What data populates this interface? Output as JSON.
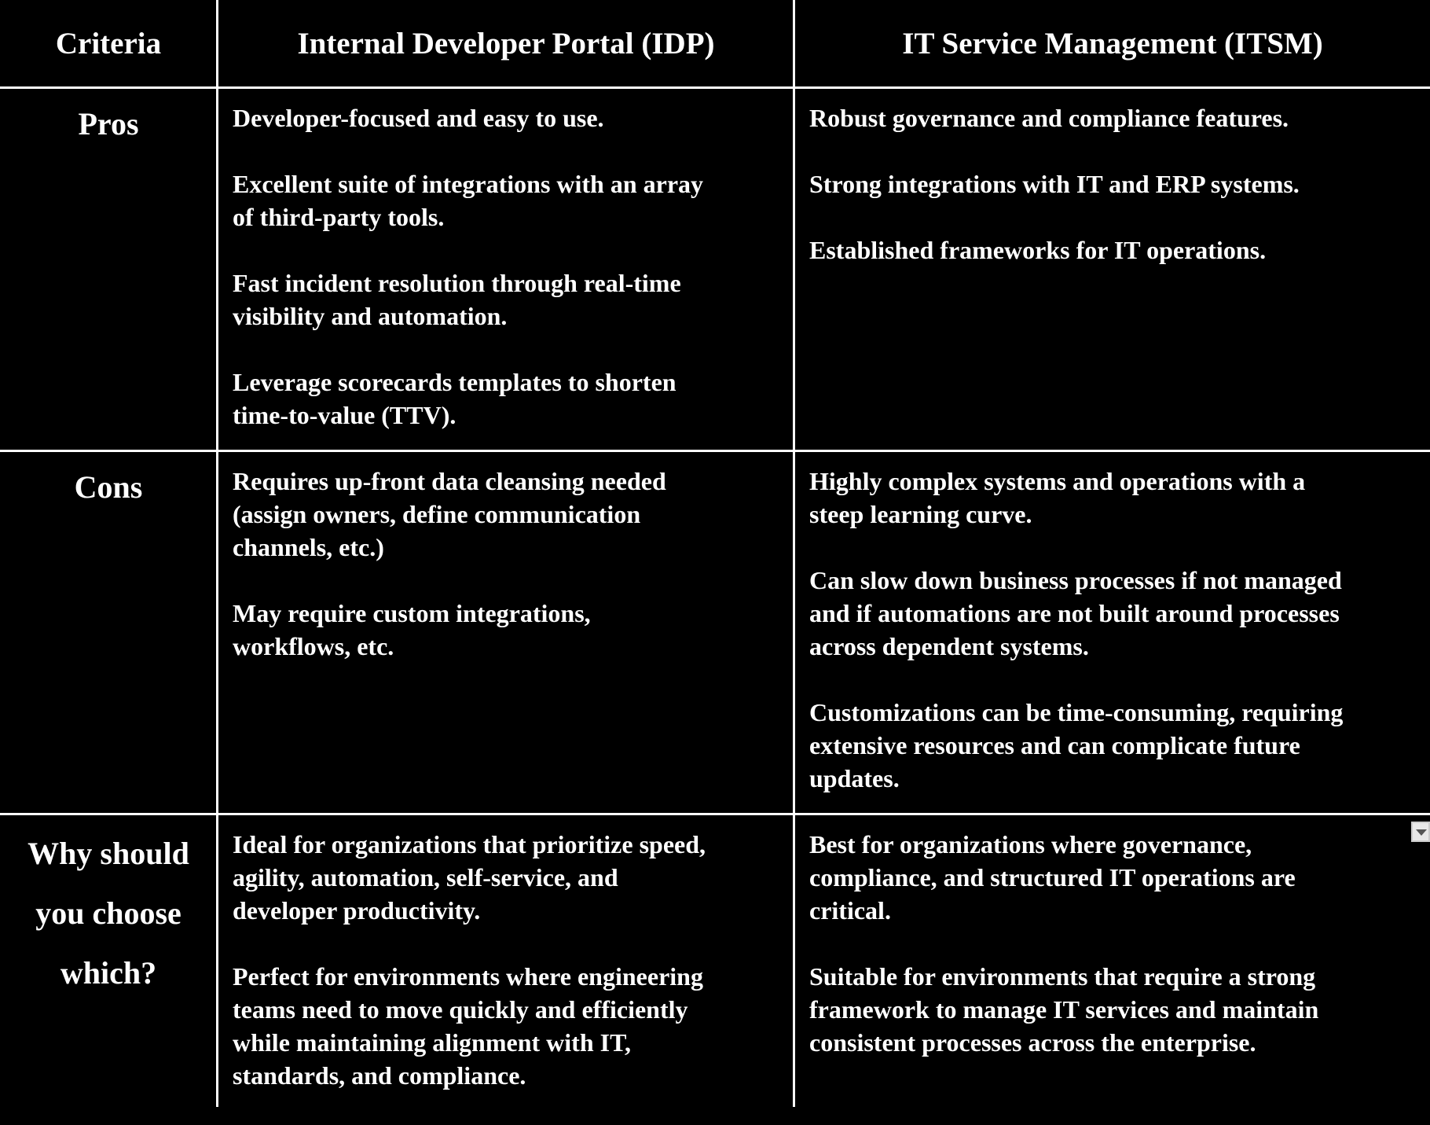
{
  "headers": [
    "Criteria",
    "Internal Developer Portal (IDP)",
    "IT Service Management (ITSM)"
  ],
  "rows": [
    {
      "criteria": [
        "Pros"
      ],
      "idp": [
        [
          "Developer-focused and easy to use."
        ],
        [
          "Excellent suite of integrations with an array",
          "of third-party tools."
        ],
        [
          "Fast incident resolution through real-time",
          "visibility and automation."
        ],
        [
          "Leverage scorecards templates to shorten",
          "time-to-value (TTV)."
        ]
      ],
      "itsm": [
        [
          "Robust governance and compliance features."
        ],
        [
          "Strong integrations with IT and ERP systems."
        ],
        [
          "Established frameworks for IT operations."
        ]
      ]
    },
    {
      "criteria": [
        "Cons"
      ],
      "idp": [
        [
          "Requires up-front data cleansing needed",
          "(assign owners, define communication",
          "channels, etc.)"
        ],
        [
          "May require custom integrations,",
          "workflows, etc."
        ]
      ],
      "itsm": [
        [
          "Highly complex systems and operations with a",
          "steep learning curve."
        ],
        [
          "Can slow down business processes if not managed",
          "and if automations are not built around processes",
          "across dependent systems."
        ],
        [
          "Customizations can be time-consuming, requiring",
          "extensive resources and can complicate future",
          "updates."
        ]
      ]
    },
    {
      "criteria": [
        "Why should",
        "you choose",
        "which?"
      ],
      "idp": [
        [
          "Ideal for organizations that prioritize speed,",
          "agility, automation, self-service, and",
          "developer productivity."
        ],
        [
          "Perfect for environments where engineering",
          "teams need to move quickly and efficiently",
          "while maintaining alignment with IT,",
          "standards, and compliance."
        ]
      ],
      "itsm": [
        [
          "Best for organizations where governance,",
          "compliance, and structured IT operations are",
          "critical."
        ],
        [
          "Suitable for environments that require a strong",
          "framework to manage IT services and maintain",
          "consistent processes across the enterprise."
        ]
      ]
    }
  ],
  "colors": {
    "background": "#000000",
    "text": "#ffffff",
    "grid": "#ffffff"
  },
  "icons": {
    "dropdown": "chevron-down-icon"
  }
}
